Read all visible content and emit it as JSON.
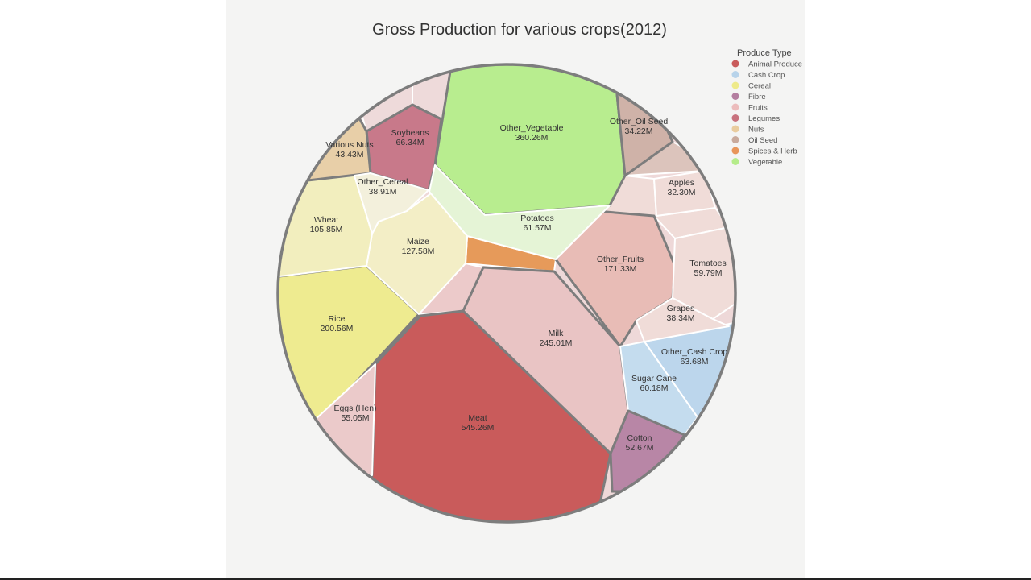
{
  "chart_data": {
    "type": "voronoi-treemap",
    "title": "Gross Production for various crops(2012)",
    "legend": {
      "title": "Produce Type",
      "placement": "top-right",
      "items": [
        {
          "name": "Animal Produce",
          "color": "#c95b5b"
        },
        {
          "name": "Cash Crop",
          "color": "#b7d3ea"
        },
        {
          "name": "Cereal",
          "color": "#eeea8a"
        },
        {
          "name": "Fibre",
          "color": "#b47ea0"
        },
        {
          "name": "Fruits",
          "color": "#ecbcbc"
        },
        {
          "name": "Legumes",
          "color": "#c8727e"
        },
        {
          "name": "Nuts",
          "color": "#e9cc9e"
        },
        {
          "name": "Oil Seed",
          "color": "#c9aa9c"
        },
        {
          "name": "Spices & Herb",
          "color": "#e8955a"
        },
        {
          "name": "Vegetable",
          "color": "#b5ec8a"
        }
      ]
    },
    "cells": [
      {
        "label": "Meat",
        "value": "545.26M",
        "category": "Animal Produce",
        "color": "#c95b5b"
      },
      {
        "label": "Other_Vegetable",
        "value": "360.26M",
        "category": "Vegetable",
        "color": "#b8ed8f"
      },
      {
        "label": "Milk",
        "value": "245.01M",
        "category": "Animal Produce",
        "color": "#e9c4c4"
      },
      {
        "label": "Rice",
        "value": "200.56M",
        "category": "Cereal",
        "color": "#eeeb90"
      },
      {
        "label": "Other_Fruits",
        "value": "171.33M",
        "category": "Fruits",
        "color": "#e8bcb6"
      },
      {
        "label": "Maize",
        "value": "127.58M",
        "category": "Cereal",
        "color": "#f3eec6"
      },
      {
        "label": "Wheat",
        "value": "105.85M",
        "category": "Cereal",
        "color": "#f2eebe"
      },
      {
        "label": "Soybeans",
        "value": "66.34M",
        "category": "Legumes",
        "color": "#c8798a"
      },
      {
        "label": "Other_Cash Crop",
        "value": "63.68M",
        "category": "Cash Crop",
        "color": "#bcd6ec"
      },
      {
        "label": "Potatoes",
        "value": "61.57M",
        "category": "Vegetable",
        "color": "#e5f4d6"
      },
      {
        "label": "Sugar Cane",
        "value": "60.18M",
        "category": "Cash Crop",
        "color": "#c4dcee"
      },
      {
        "label": "Tomatoes",
        "value": "59.79M",
        "category": "Fruits",
        "color": "#f0dcd8"
      },
      {
        "label": "Eggs (Hen)",
        "value": "55.05M",
        "category": "Animal Produce",
        "color": "#ebcaca"
      },
      {
        "label": "Cotton",
        "value": "52.67M",
        "category": "Fibre",
        "color": "#b886a6"
      },
      {
        "label": "Various Nuts",
        "value": "43.43M",
        "category": "Nuts",
        "color": "#e8cfa8"
      },
      {
        "label": "Other_Cereal",
        "value": "38.91M",
        "category": "Cereal",
        "color": "#f3f0dc"
      },
      {
        "label": "Grapes",
        "value": "38.34M",
        "category": "Fruits",
        "color": "#f0dcd8"
      },
      {
        "label": "Other_Oil Seed",
        "value": "34.22M",
        "category": "Oil Seed",
        "color": "#cfb2a8"
      },
      {
        "label": "Apples",
        "value": "32.30M",
        "category": "Fruits",
        "color": "#f0dcd8"
      }
    ],
    "unlabeled_cells": [
      {
        "category": "Spices & Herb",
        "color": "#e69a5a"
      }
    ]
  }
}
